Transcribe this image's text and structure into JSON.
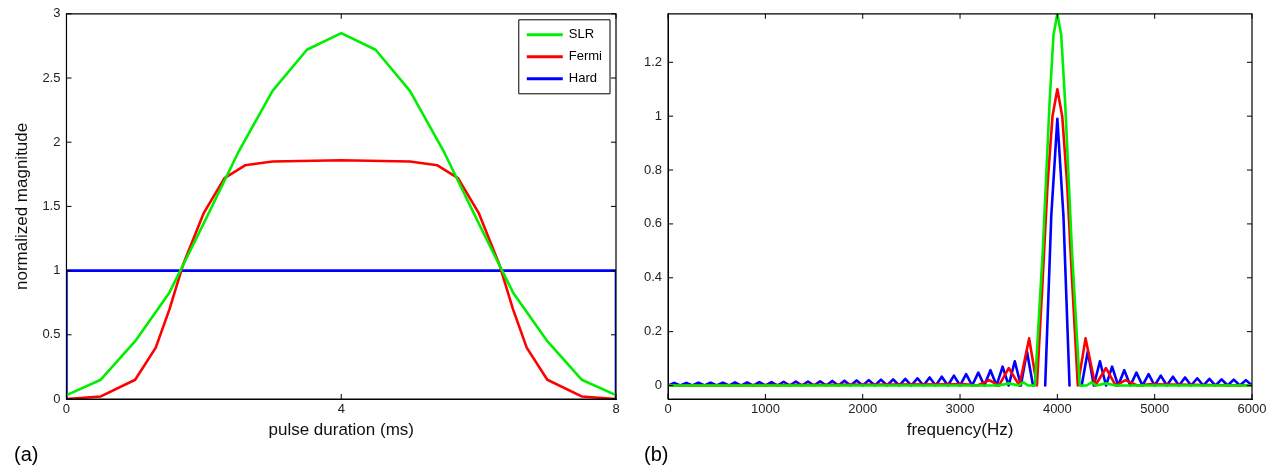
{
  "chart_data": [
    {
      "type": "line",
      "xlabel": "pulse duration (ms)",
      "ylabel": "normalized magnitude",
      "xlim": [
        0,
        8
      ],
      "xticks": [
        0,
        4,
        8
      ],
      "ylim": [
        0,
        3
      ],
      "yticks": [
        0,
        0.5,
        1,
        1.5,
        2,
        2.5,
        3
      ],
      "grid": false,
      "legend": "top right",
      "marker": "none",
      "line_style": "solid",
      "annotations": [
        "(a)"
      ],
      "series": [
        {
          "name": "SLR",
          "color": "#00ee00",
          "x": [
            0,
            0.5,
            1,
            1.5,
            2,
            2.5,
            3,
            3.5,
            4,
            4.5,
            5,
            5.5,
            6,
            6.5,
            7,
            7.5,
            8
          ],
          "values": [
            0.03,
            0.15,
            0.45,
            0.83,
            1.37,
            1.92,
            2.4,
            2.72,
            2.85,
            2.72,
            2.4,
            1.92,
            1.37,
            0.83,
            0.45,
            0.15,
            0.03
          ]
        },
        {
          "name": "Fermi",
          "color": "#ff0000",
          "x": [
            0,
            0.5,
            1,
            1.3,
            1.5,
            1.7,
            2,
            2.3,
            2.6,
            3,
            4,
            5,
            5.4,
            5.7,
            6,
            6.3,
            6.5,
            6.7,
            7,
            7.5,
            8
          ],
          "values": [
            0,
            0.02,
            0.15,
            0.4,
            0.7,
            1.05,
            1.45,
            1.72,
            1.82,
            1.85,
            1.86,
            1.85,
            1.82,
            1.72,
            1.45,
            1.05,
            0.7,
            0.4,
            0.15,
            0.02,
            0
          ]
        },
        {
          "name": "Hard",
          "color": "#0000ff",
          "x": [
            0,
            0,
            8,
            8
          ],
          "values": [
            0,
            1,
            1,
            0
          ]
        }
      ]
    },
    {
      "type": "line",
      "xlabel": "frequency(Hz)",
      "xlim": [
        0,
        6000
      ],
      "xticks": [
        0,
        1000,
        2000,
        3000,
        4000,
        5000,
        6000
      ],
      "ylim": [
        -0.05,
        1.38
      ],
      "yticks": [
        0,
        0.2,
        0.4,
        0.6,
        0.8,
        1,
        1.2
      ],
      "grid": false,
      "marker": "none",
      "line_style": "solid",
      "annotations": [
        "(b)"
      ],
      "series": [
        {
          "color": "#00ee00",
          "x": [
            0,
            3400,
            3500,
            3600,
            3650,
            3700,
            3770,
            3850,
            3920,
            3960,
            4000,
            4040,
            4080,
            4150,
            4230,
            4300,
            4350,
            4400,
            4500,
            4600,
            6000
          ],
          "values": [
            0,
            0,
            0.008,
            0,
            0.012,
            0,
            0,
            0.5,
            1.05,
            1.3,
            1.38,
            1.3,
            1.05,
            0.5,
            0,
            0,
            0.012,
            0,
            0.008,
            0,
            0
          ]
        },
        {
          "color": "#ff0000",
          "x": [
            0,
            3050,
            3180,
            3300,
            3400,
            3500,
            3610,
            3710,
            3790,
            3850,
            3900,
            3950,
            4000,
            4050,
            4100,
            4150,
            4210,
            4290,
            4390,
            4500,
            4600,
            4700,
            4820,
            4950,
            6000
          ],
          "values": [
            0,
            0.005,
            0,
            0.02,
            0,
            0.065,
            0,
            0.175,
            0,
            0.4,
            0.75,
            1.0,
            1.1,
            1.0,
            0.75,
            0.4,
            0,
            0.175,
            0,
            0.065,
            0,
            0.02,
            0,
            0.005,
            0
          ]
        },
        {
          "color": "#0000ff",
          "x": [
            0,
            62.5,
            125,
            187.5,
            250,
            312.5,
            375,
            437.5,
            500,
            562.5,
            625,
            687.5,
            750,
            812.5,
            875,
            937.5,
            1000,
            1062.5,
            1125,
            1187.5,
            1250,
            1312.5,
            1375,
            1437.5,
            1500,
            1562.5,
            1625,
            1687.5,
            1750,
            1812.5,
            1875,
            1937.5,
            2000,
            2062.5,
            2125,
            2187.5,
            2250,
            2312.5,
            2375,
            2437.5,
            2500,
            2562.5,
            2625,
            2687.5,
            2750,
            2812.5,
            2875,
            2937.5,
            3000,
            3062.5,
            3125,
            3187.5,
            3250,
            3312.5,
            3375,
            3437.5,
            3500,
            3562.5,
            3625,
            3687.5,
            3750,
            3812.5,
            3875,
            3937.5,
            4000,
            4062.5,
            4125,
            4187.5,
            4250,
            4312.5,
            4375,
            4437.5,
            4500,
            4562.5,
            4625,
            4687.5,
            4750,
            4812.5,
            4875,
            4937.5,
            5000,
            5062.5,
            5125,
            5187.5,
            5250,
            5312.5,
            5375,
            5437.5,
            5500,
            5562.5,
            5625,
            5687.5,
            5750,
            5812.5,
            5875,
            5937.5,
            6000
          ],
          "values": [
            0,
            0.01,
            0,
            0.01,
            0,
            0.011,
            0,
            0.011,
            0,
            0.011,
            0,
            0.012,
            0,
            0.012,
            0,
            0.013,
            0,
            0.013,
            0,
            0.014,
            0,
            0.015,
            0,
            0.015,
            0,
            0.016,
            0,
            0.017,
            0,
            0.018,
            0,
            0.019,
            0,
            0.02,
            0,
            0.022,
            0,
            0.023,
            0,
            0.025,
            0,
            0.027,
            0,
            0.03,
            0,
            0.033,
            0,
            0.037,
            0,
            0.042,
            0,
            0.048,
            0,
            0.057,
            0,
            0.07,
            0,
            0.09,
            0,
            0.126,
            0,
            null,
            0,
            0.63,
            0.99,
            0.63,
            0,
            null,
            0,
            0.126,
            0,
            0.09,
            0,
            0.07,
            0,
            0.057,
            0,
            0.048,
            0,
            0.042,
            0,
            0.037,
            0,
            0.033,
            0,
            0.03,
            0,
            0.027,
            0,
            0.025,
            0,
            0.023,
            0,
            0.022,
            0,
            0.02,
            0
          ]
        }
      ]
    }
  ]
}
